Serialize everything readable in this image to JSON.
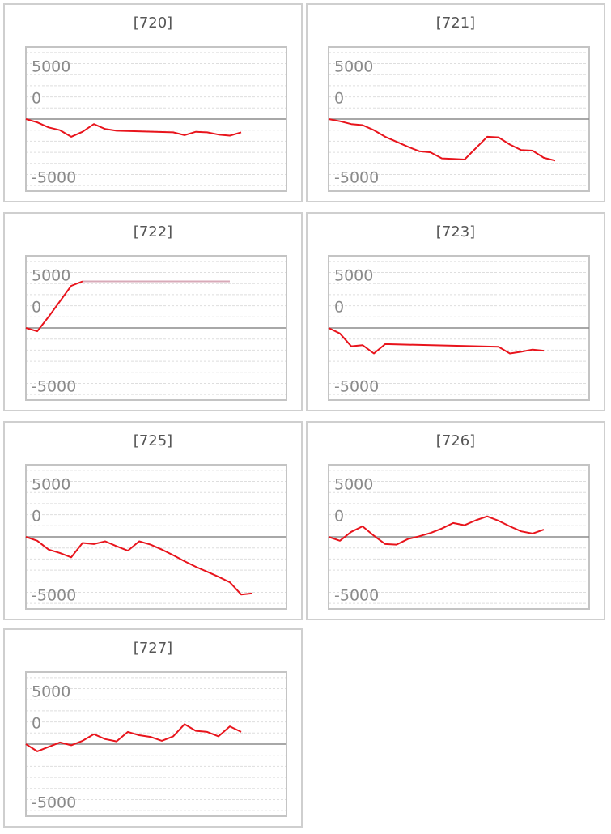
{
  "chart_data": [
    {
      "type": "line",
      "title": "[720]",
      "yticks": [
        "5000",
        "0",
        "-5000"
      ],
      "ylim": [
        -6500,
        6500
      ],
      "series": [
        {
          "color": "#e8141c",
          "x": [
            0,
            1,
            2,
            3,
            4,
            5,
            6,
            7,
            8,
            13,
            14,
            15,
            16,
            17,
            18,
            19
          ],
          "y": [
            0,
            -300,
            -750,
            -1000,
            -1600,
            -1150,
            -450,
            -900,
            -1050,
            -1200,
            -1450,
            -1150,
            -1200,
            -1400,
            -1500,
            -1200
          ]
        }
      ]
    },
    {
      "type": "line",
      "title": "[721]",
      "yticks": [
        "5000",
        "0",
        "-5000"
      ],
      "ylim": [
        -6500,
        6500
      ],
      "series": [
        {
          "color": "#e8141c",
          "x": [
            0,
            1,
            2,
            3,
            4,
            5,
            6,
            7,
            8,
            9,
            10,
            11,
            12,
            14,
            15,
            16,
            17,
            18,
            19,
            20
          ],
          "y": [
            0,
            -200,
            -450,
            -550,
            -1000,
            -1600,
            -2050,
            -2500,
            -2900,
            -3000,
            -3550,
            -3600,
            -3650,
            -1600,
            -1650,
            -2300,
            -2800,
            -2850,
            -3500,
            -3750
          ]
        }
      ]
    },
    {
      "type": "line",
      "title": "[722]",
      "yticks": [
        "5000",
        "0",
        "-5000"
      ],
      "ylim": [
        -6500,
        6500
      ],
      "series": [
        {
          "color": "#e8141c",
          "x": [
            0,
            1,
            2,
            4,
            5
          ],
          "y": [
            0,
            -300,
            1000,
            3800,
            4200
          ]
        },
        {
          "color": "#d8aab8",
          "x": [
            5,
            18
          ],
          "y": [
            4200,
            4200
          ]
        }
      ]
    },
    {
      "type": "line",
      "title": "[723]",
      "yticks": [
        "5000",
        "0",
        "-5000"
      ],
      "ylim": [
        -6500,
        6500
      ],
      "series": [
        {
          "color": "#e8141c",
          "x": [
            0,
            1,
            2,
            3,
            4,
            5,
            15,
            16,
            17,
            18,
            19
          ],
          "y": [
            0,
            -500,
            -1650,
            -1550,
            -2300,
            -1450,
            -1700,
            -2300,
            -2150,
            -1950,
            -2050
          ]
        }
      ]
    },
    {
      "type": "line",
      "title": "[725]",
      "yticks": [
        "5000",
        "0",
        "-5000"
      ],
      "ylim": [
        -6500,
        6500
      ],
      "series": [
        {
          "color": "#e8141c",
          "x": [
            0,
            1,
            2,
            3,
            4,
            5,
            6,
            7,
            8,
            9,
            10,
            11,
            12,
            13,
            14,
            15,
            16,
            17,
            18,
            19,
            20
          ],
          "y": [
            0,
            -350,
            -1150,
            -1450,
            -1850,
            -550,
            -650,
            -400,
            -850,
            -1250,
            -400,
            -700,
            -1150,
            -1650,
            -2200,
            -2700,
            -3150,
            -3600,
            -4100,
            -5200,
            -5100
          ]
        }
      ]
    },
    {
      "type": "line",
      "title": "[726]",
      "yticks": [
        "5000",
        "0",
        "-5000"
      ],
      "ylim": [
        -6500,
        6500
      ],
      "series": [
        {
          "color": "#e8141c",
          "x": [
            0,
            1,
            2,
            3,
            4,
            5,
            6,
            7,
            8,
            9,
            10,
            11,
            12,
            13,
            14,
            15,
            16,
            17,
            18,
            19
          ],
          "y": [
            0,
            -350,
            450,
            950,
            100,
            -650,
            -700,
            -200,
            50,
            350,
            750,
            1250,
            1050,
            1500,
            1850,
            1450,
            950,
            500,
            300,
            650
          ]
        }
      ]
    },
    {
      "type": "line",
      "title": "[727]",
      "yticks": [
        "5000",
        "0",
        "-5000"
      ],
      "ylim": [
        -6500,
        6500
      ],
      "series": [
        {
          "color": "#e8141c",
          "x": [
            0,
            1,
            2,
            3,
            4,
            5,
            6,
            7,
            8,
            9,
            10,
            11,
            12,
            13,
            14,
            15,
            16,
            17,
            18,
            19
          ],
          "y": [
            0,
            -650,
            -250,
            150,
            -100,
            300,
            900,
            450,
            250,
            1100,
            800,
            650,
            300,
            700,
            1800,
            1200,
            1100,
            700,
            1600,
            1100
          ]
        }
      ]
    }
  ]
}
